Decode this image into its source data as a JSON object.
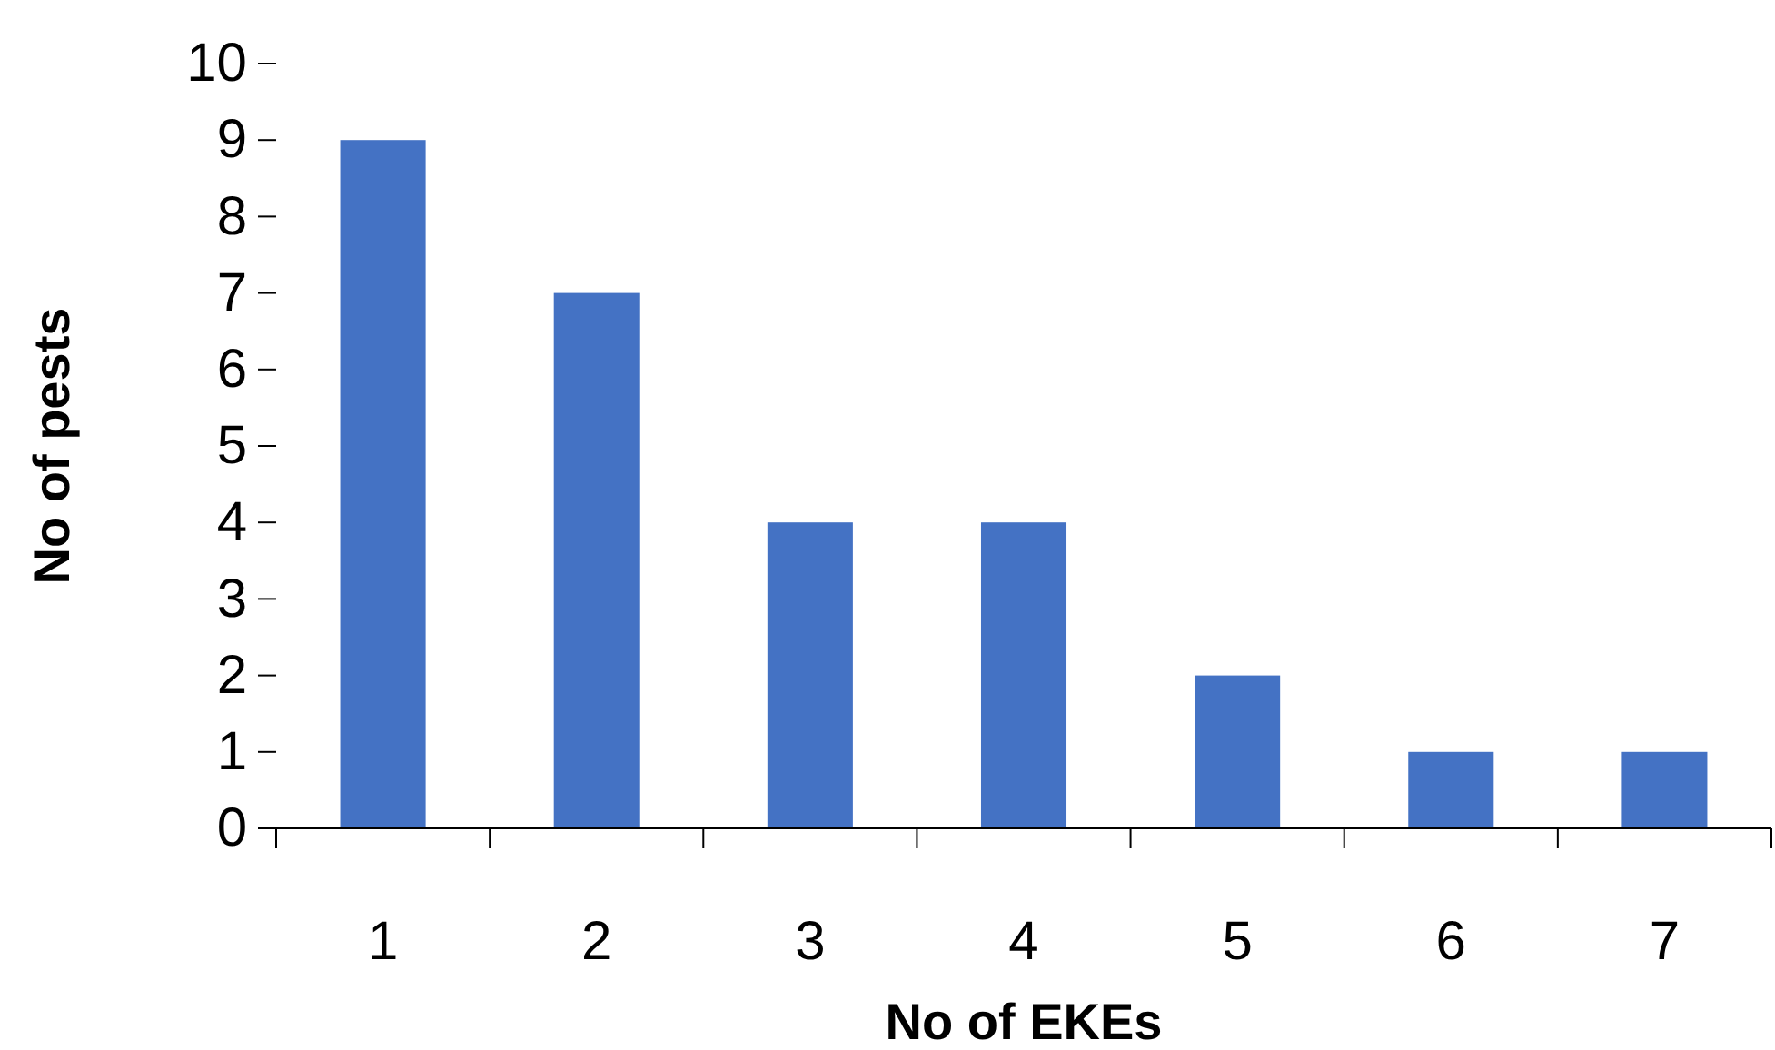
{
  "chart_data": {
    "type": "bar",
    "xlabel": "No of EKEs",
    "ylabel": "No of pests",
    "categories": [
      "1",
      "2",
      "3",
      "4",
      "5",
      "6",
      "7"
    ],
    "values": [
      9,
      7,
      4,
      4,
      2,
      1,
      1
    ],
    "color": "#4472c4",
    "ylim": [
      0,
      10
    ],
    "yticks": [
      0,
      1,
      2,
      3,
      4,
      5,
      6,
      7,
      8,
      9,
      10
    ],
    "grid": false,
    "legend": false
  }
}
